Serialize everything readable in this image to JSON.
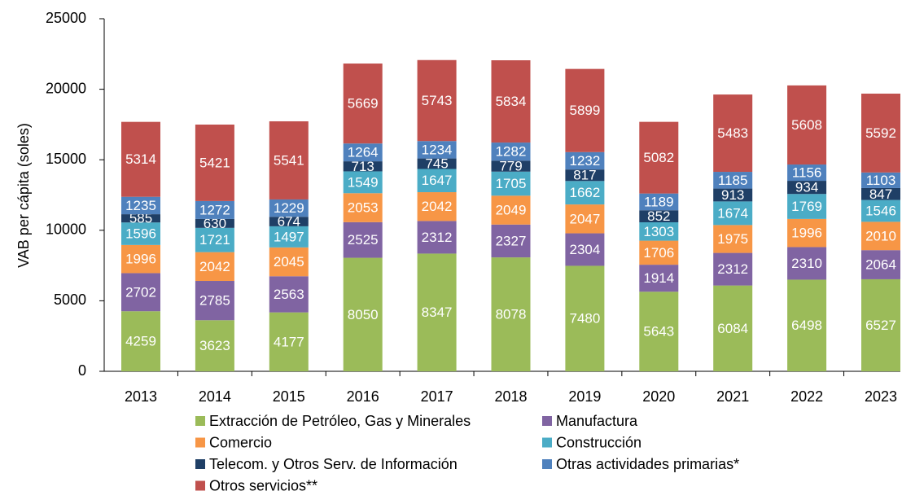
{
  "chart_data": {
    "type": "stacked_bar",
    "y_label": "VAB per cápita (soles)",
    "categories": [
      "2013",
      "2014",
      "2015",
      "2016",
      "2017",
      "2018",
      "2019",
      "2020",
      "2021",
      "2022",
      "2023"
    ],
    "series": [
      {
        "name": "Extracción de Petróleo, Gas y Minerales",
        "color": "#9bbb59",
        "values": [
          4259,
          3623,
          4177,
          8050,
          8347,
          8078,
          7480,
          5643,
          6084,
          6498,
          6527
        ]
      },
      {
        "name": "Manufactura",
        "color": "#8064a2",
        "values": [
          2702,
          2785,
          2563,
          2525,
          2312,
          2327,
          2304,
          1914,
          2312,
          2310,
          2064
        ]
      },
      {
        "name": "Comercio",
        "color": "#f79646",
        "values": [
          1996,
          2042,
          2045,
          2053,
          2042,
          2049,
          2047,
          1706,
          1975,
          1996,
          2010
        ]
      },
      {
        "name": "Construcción",
        "color": "#4bacc6",
        "values": [
          1596,
          1721,
          1497,
          1549,
          1647,
          1705,
          1662,
          1303,
          1674,
          1769,
          1546
        ]
      },
      {
        "name": "Telecom. y Otros Serv. de Información",
        "color": "#1f3f66",
        "values": [
          585,
          630,
          674,
          713,
          745,
          779,
          817,
          852,
          913,
          934,
          847
        ]
      },
      {
        "name": "Otras actividades primarias*",
        "color": "#4f81bd",
        "values": [
          1235,
          1272,
          1229,
          1264,
          1234,
          1282,
          1232,
          1189,
          1185,
          1156,
          1103
        ]
      },
      {
        "name": "Otros servicios**",
        "color": "#c0504d",
        "values": [
          5314,
          5421,
          5541,
          5669,
          5743,
          5834,
          5899,
          5082,
          5483,
          5608,
          5592
        ]
      }
    ],
    "ylim": [
      0,
      25000
    ],
    "yticks": [
      0,
      5000,
      10000,
      15000,
      20000,
      25000
    ],
    "grid": false,
    "legend": "bottom"
  }
}
